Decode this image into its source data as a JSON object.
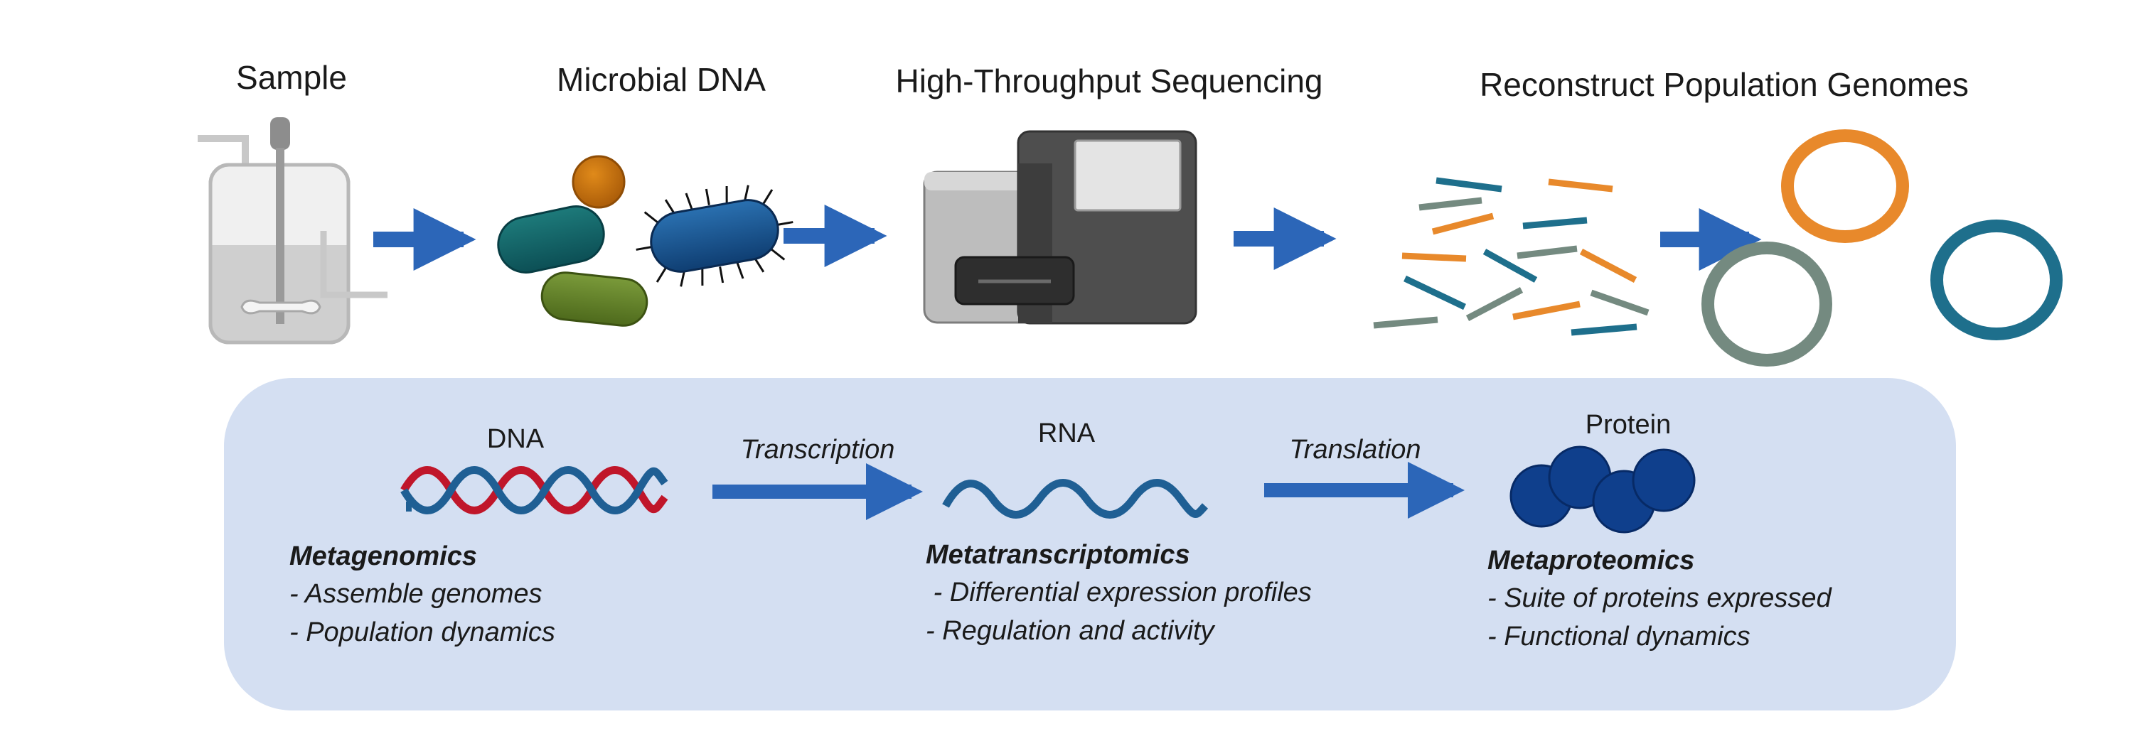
{
  "pipeline": {
    "steps": [
      {
        "label": "Sample"
      },
      {
        "label": "Microbial DNA"
      },
      {
        "label": "High-Throughput Sequencing"
      },
      {
        "label": "Reconstruct Population Genomes"
      }
    ]
  },
  "omics": {
    "dna_label": "DNA",
    "rna_label": "RNA",
    "protein_label": "Protein",
    "transcription_label": "Transcription",
    "translation_label": "Translation",
    "metagenomics": {
      "title": "Metagenomics",
      "items": [
        "- Assemble genomes",
        "- Population dynamics"
      ]
    },
    "metatranscriptomics": {
      "title": "Metatranscriptomics",
      "items": [
        " - Differential expression profiles",
        "- Regulation and activity"
      ]
    },
    "metaproteomics": {
      "title": "Metaproteomics",
      "items": [
        "- Suite of proteins expressed",
        "- Functional dynamics"
      ]
    }
  },
  "colors": {
    "arrow": "#2c66b8",
    "panel": "#d4dff2",
    "dna_red": "#c0162a",
    "dna_blue": "#1f5f94",
    "orange": "#e8892b",
    "teal": "#1e6f8c",
    "grey_green": "#748a80",
    "protein": "#0f3f8c"
  }
}
